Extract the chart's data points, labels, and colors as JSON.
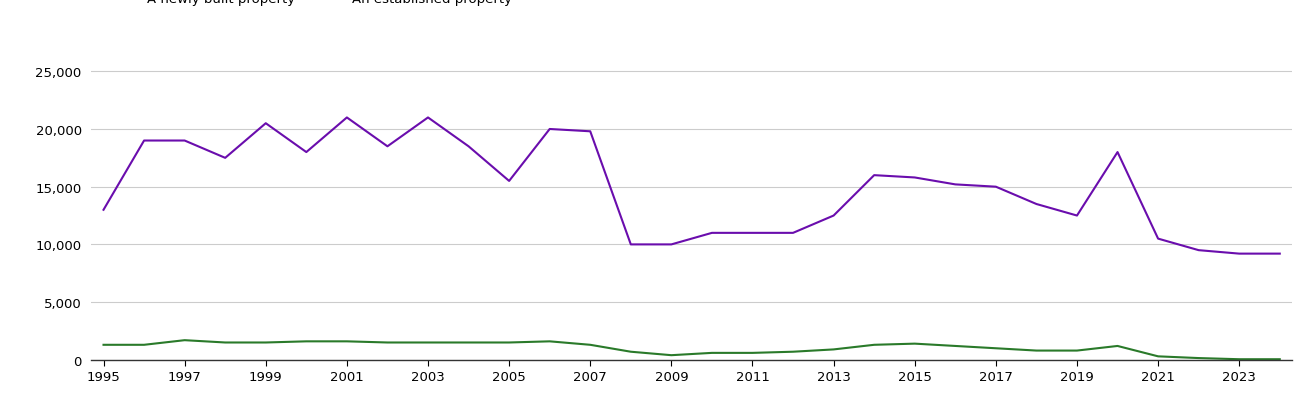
{
  "years": [
    1995,
    1996,
    1997,
    1998,
    1999,
    2000,
    2001,
    2002,
    2003,
    2004,
    2005,
    2006,
    2007,
    2008,
    2009,
    2010,
    2011,
    2012,
    2013,
    2014,
    2015,
    2016,
    2017,
    2018,
    2019,
    2020,
    2021,
    2022,
    2023,
    2024
  ],
  "new_homes": [
    1300,
    1300,
    1700,
    1500,
    1500,
    1600,
    1600,
    1500,
    1500,
    1500,
    1500,
    1600,
    1300,
    700,
    400,
    600,
    600,
    700,
    900,
    1300,
    1400,
    1200,
    1000,
    800,
    800,
    1200,
    300,
    150,
    50,
    50
  ],
  "established_homes": [
    13000,
    19000,
    19000,
    17500,
    20500,
    18000,
    21000,
    18500,
    21000,
    18500,
    15500,
    20000,
    19800,
    10000,
    10000,
    11000,
    11000,
    11000,
    12500,
    16000,
    15800,
    15200,
    15000,
    13500,
    12500,
    18000,
    10500,
    9500,
    9200,
    9200
  ],
  "new_color": "#2a7a2a",
  "established_color": "#6a0dad",
  "background_color": "#ffffff",
  "plot_bg_color": "#f7f7f7",
  "ylim": [
    0,
    27000
  ],
  "yticks": [
    0,
    5000,
    10000,
    15000,
    20000,
    25000
  ],
  "xtick_step": 2,
  "grid_color": "#cccccc",
  "line_width": 1.5,
  "tick_fontsize": 9.5
}
